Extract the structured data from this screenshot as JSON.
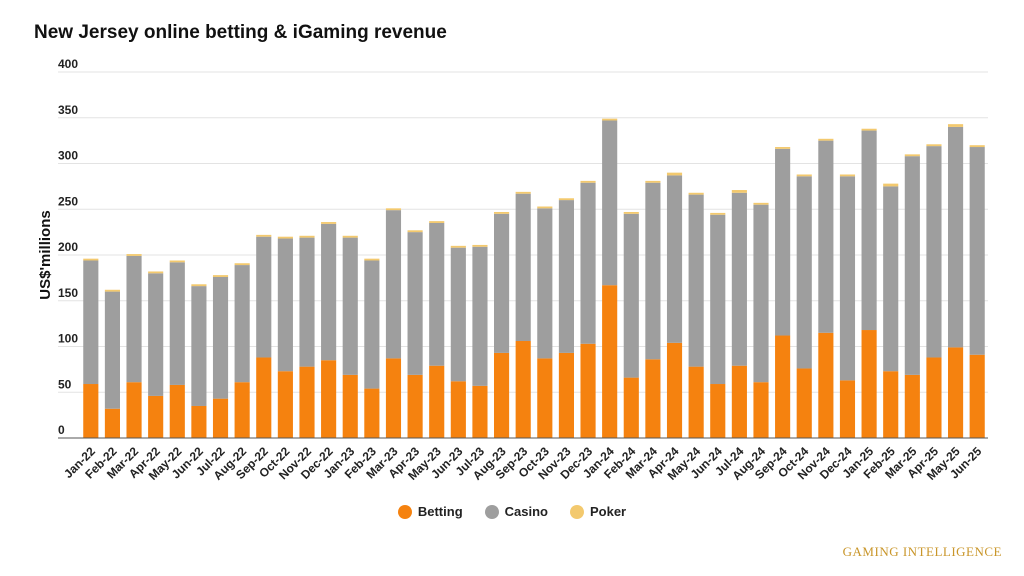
{
  "chart_data": {
    "type": "bar",
    "stacked": true,
    "title": "New Jersey online betting & iGaming revenue",
    "ylabel": "US$'millions",
    "xlabel": "",
    "ylim": [
      0,
      400
    ],
    "yticks": [
      0,
      50,
      100,
      150,
      200,
      250,
      300,
      350,
      400
    ],
    "grid": true,
    "legend_position": "bottom-center",
    "categories": [
      "Jan-22",
      "Feb-22",
      "Mar-22",
      "Apr-22",
      "May-22",
      "Jun-22",
      "Jul-22",
      "Aug-22",
      "Sep-22",
      "Oct-22",
      "Nov-22",
      "Dec-22",
      "Jan-23",
      "Feb-23",
      "Mar-23",
      "Apr-23",
      "May-23",
      "Jun-23",
      "Jul-23",
      "Aug-23",
      "Sep-23",
      "Oct-23",
      "Nov-23",
      "Dec-23",
      "Jan-24",
      "Feb-24",
      "Mar-24",
      "Apr-24",
      "May-24",
      "Jun-24",
      "Jul-24",
      "Aug-24",
      "Sep-24",
      "Oct-24",
      "Nov-24",
      "Dec-24",
      "Jan-25",
      "Feb-25",
      "Mar-25",
      "Apr-25",
      "May-25",
      "Jun-25"
    ],
    "series": [
      {
        "name": "Betting",
        "color": "#f5820f",
        "values": [
          59,
          32,
          61,
          46,
          58,
          35,
          43,
          61,
          88,
          73,
          78,
          85,
          69,
          54,
          87,
          69,
          79,
          62,
          57,
          93,
          106,
          87,
          93,
          103,
          167,
          66,
          86,
          104,
          78,
          59,
          79,
          61,
          112,
          76,
          115,
          63,
          118,
          73,
          69,
          88,
          99,
          91
        ]
      },
      {
        "name": "Casino",
        "color": "#9e9e9e",
        "values": [
          135,
          128,
          138,
          134,
          134,
          131,
          133,
          128,
          132,
          145,
          141,
          149,
          150,
          140,
          162,
          156,
          156,
          146,
          152,
          152,
          161,
          164,
          167,
          176,
          180,
          179,
          193,
          183,
          188,
          185,
          189,
          194,
          204,
          210,
          210,
          223,
          218,
          202,
          239,
          231,
          241,
          227
        ]
      },
      {
        "name": "Poker",
        "color": "#f3c96e",
        "values": [
          2,
          2,
          2,
          2,
          2,
          2,
          2,
          2,
          2,
          2,
          2,
          2,
          2,
          2,
          2,
          2,
          2,
          2,
          2,
          2,
          2,
          2,
          2,
          2,
          2,
          2,
          2,
          3,
          2,
          2,
          3,
          2,
          2,
          2,
          2,
          2,
          2,
          3,
          2,
          2,
          3,
          2
        ]
      }
    ]
  },
  "brand": {
    "text": "GAMING INTELLIGENCE"
  }
}
